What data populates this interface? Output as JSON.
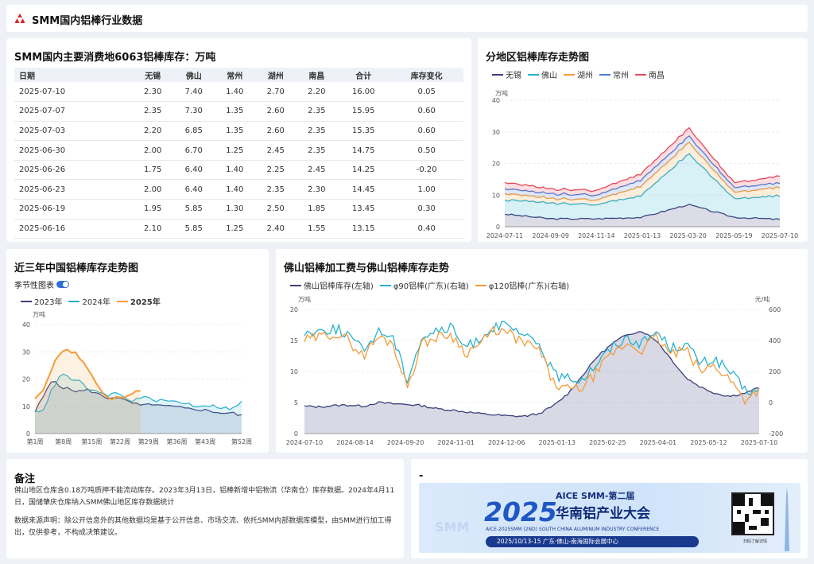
{
  "header": {
    "title": "SMM国内铝棒行业数据"
  },
  "inventory_table": {
    "title": "SMM国内主要消费地6063铝棒库存：万吨",
    "columns": [
      "日期",
      "无锡",
      "佛山",
      "常州",
      "湖州",
      "南昌",
      "合计",
      "库存变化"
    ],
    "rows": [
      [
        "2025-07-10",
        "2.30",
        "7.40",
        "1.40",
        "2.70",
        "2.20",
        "16.00",
        "0.05"
      ],
      [
        "2025-07-07",
        "2.35",
        "7.30",
        "1.35",
        "2.60",
        "2.35",
        "15.95",
        "0.60"
      ],
      [
        "2025-07-03",
        "2.20",
        "6.85",
        "1.35",
        "2.60",
        "2.35",
        "15.35",
        "0.60"
      ],
      [
        "2025-06-30",
        "2.00",
        "6.70",
        "1.25",
        "2.45",
        "2.35",
        "14.75",
        "0.50"
      ],
      [
        "2025-06-26",
        "1.75",
        "6.40",
        "1.40",
        "2.25",
        "2.45",
        "14.25",
        "-0.20"
      ],
      [
        "2025-06-23",
        "2.00",
        "6.40",
        "1.40",
        "2.35",
        "2.30",
        "14.45",
        "1.00"
      ],
      [
        "2025-06-19",
        "1.95",
        "5.85",
        "1.30",
        "2.50",
        "1.85",
        "13.45",
        "0.30"
      ],
      [
        "2025-06-16",
        "2.10",
        "5.85",
        "1.25",
        "2.40",
        "1.55",
        "13.15",
        "0.40"
      ]
    ]
  },
  "region_chart": {
    "title": "分地区铝棒库存走势图"
  },
  "season_chart": {
    "title": "近三年中国铝棒库存走势图",
    "toggle_label": "季节性图表"
  },
  "foshan_chart": {
    "title": "佛山铝棒加工费与佛山铝棒库存走势"
  },
  "notes": {
    "title": "备注",
    "text1": "佛山地区仓库含0.18万吨质押不能流动库存。2023年3月13日，铝棒新增中铝物流（华南仓）库存数据。2024年4月11日，国储肇庆仓库纳入SMM佛山地区库存数据统计",
    "text2": "数据来源声明：除公开信息外的其他数据均是基于公开信息、市场交流、依托SMM内部数据库模型，由SMM进行加工得出，仅供参考，不构成决策建议。"
  },
  "ad": {
    "title": "-",
    "tag": "AICE SMM-第二届",
    "year": "2025",
    "name": "华南铝产业大会",
    "subtitle": "AICE-2025SMM (2ND) SOUTH CHINA ALUMINUM INDUSTRY CONFERENCE",
    "date_location": "2025/10/13-15   广东·佛山-南海国际会展中心",
    "qr_caption": "扫码了解详情",
    "watermark": "SMM"
  },
  "chart_data": [
    {
      "type": "area",
      "stacked": true,
      "x": [
        "2024-07-11",
        "2024-09-09",
        "2024-11-14",
        "2025-01-13",
        "2025-03-20",
        "2025-05-19",
        "2025-07-10"
      ],
      "xticks": [
        "2024-07-11",
        "2024-09-09",
        "2024-11-14",
        "2025-01-13",
        "2025-03-20",
        "2025-05-19",
        "2025-07-10"
      ],
      "ylabel": "万吨",
      "ylim": [
        0,
        40
      ],
      "yticks": [
        0,
        10,
        20,
        30,
        40
      ],
      "legend": "top-left",
      "series": [
        {
          "name": "无锡",
          "color": "#3c3f7a",
          "values": [
            4,
            2.5,
            2.5,
            3,
            7,
            3,
            2.3
          ]
        },
        {
          "name": "佛山",
          "color": "#27b0cf",
          "values": [
            4.5,
            5,
            4.5,
            7,
            16,
            6,
            7.4
          ]
        },
        {
          "name": "湖州",
          "color": "#f39c3a",
          "values": [
            2,
            1.5,
            1.5,
            3,
            3.5,
            2,
            2.7
          ]
        },
        {
          "name": "常州",
          "color": "#4d7bd6",
          "values": [
            1.5,
            1.5,
            1.5,
            2,
            2,
            1.5,
            1.4
          ]
        },
        {
          "name": "南昌",
          "color": "#e8485a",
          "values": [
            2,
            1.5,
            1.5,
            2,
            2.5,
            1.5,
            2.2
          ]
        }
      ]
    },
    {
      "type": "line",
      "xticks": [
        "第1周",
        "第8周",
        "第15周",
        "第22周",
        "第29周",
        "第36周",
        "第43周",
        "第52周"
      ],
      "ylabel": "万吨",
      "ylim": [
        0,
        40
      ],
      "yticks": [
        0,
        10,
        20,
        30,
        40
      ],
      "legend": "top-left",
      "series": [
        {
          "name": "2023年",
          "color": "#3c3f7a",
          "values": [
            8,
            14,
            20,
            17,
            16,
            15.5,
            16,
            14.5,
            13,
            13.5,
            12,
            11,
            10,
            11,
            10,
            10,
            9.5,
            9,
            9,
            8.5,
            8,
            7.5,
            7.5,
            6.5
          ]
        },
        {
          "name": "2024年",
          "color": "#27b0cf",
          "values": [
            8,
            9,
            17,
            22,
            20,
            19,
            16,
            15,
            14,
            15,
            13,
            12,
            13.5,
            12.5,
            12,
            12,
            11.5,
            11,
            10,
            10.5,
            10,
            9.5,
            9,
            11.5
          ]
        },
        {
          "name": "2025年",
          "color": "#f39c3a",
          "values": [
            13,
            17,
            26,
            31,
            30,
            27,
            21,
            15,
            13,
            13,
            14,
            16
          ]
        }
      ]
    },
    {
      "type": "line",
      "dual_axis": true,
      "xticks": [
        "2024-07-10",
        "2024-08-14",
        "2024-09-20",
        "2024-11-01",
        "2024-12-06",
        "2025-01-13",
        "2025-02-25",
        "2025-04-01",
        "2025-05-12",
        "2025-07-10"
      ],
      "ylabel_left": "万吨",
      "ylim_left": [
        0,
        20
      ],
      "yticks_left": [
        0,
        5,
        10,
        15,
        20
      ],
      "ylabel_right": "元/吨",
      "ylim_right": [
        -200,
        600
      ],
      "yticks_right": [
        -200,
        0,
        200,
        400,
        600
      ],
      "legend": "top-left",
      "series": [
        {
          "name": "佛山铝棒库存(左轴)",
          "axis": "left",
          "color": "#3c3f7a",
          "values": [
            4.4,
            4.3,
            4.5,
            4.6,
            4.4,
            5,
            4.8,
            4.7,
            4.5,
            4,
            3.8,
            3.5,
            3.2,
            3,
            2.8,
            2.8,
            3.2,
            4.5,
            6.5,
            9.5,
            12.5,
            14.5,
            16,
            16.5,
            15,
            12,
            9,
            7.5,
            6.5,
            6,
            6.5,
            7.4
          ]
        },
        {
          "name": "φ90铝棒(广东)(右轴)",
          "axis": "right",
          "color": "#27b0cf",
          "values": [
            450,
            460,
            480,
            440,
            330,
            460,
            430,
            150,
            420,
            460,
            480,
            350,
            420,
            500,
            480,
            420,
            380,
            180,
            150,
            160,
            260,
            360,
            420,
            380,
            460,
            350,
            380,
            250,
            280,
            200,
            80,
            70
          ]
        },
        {
          "name": "φ120铝棒(广东)(右轴)",
          "axis": "right",
          "color": "#f39c3a",
          "values": [
            400,
            420,
            450,
            400,
            300,
            420,
            390,
            100,
            380,
            420,
            440,
            320,
            380,
            470,
            440,
            380,
            340,
            120,
            80,
            100,
            200,
            320,
            380,
            340,
            420,
            310,
            340,
            200,
            240,
            150,
            20,
            90
          ]
        }
      ]
    }
  ]
}
